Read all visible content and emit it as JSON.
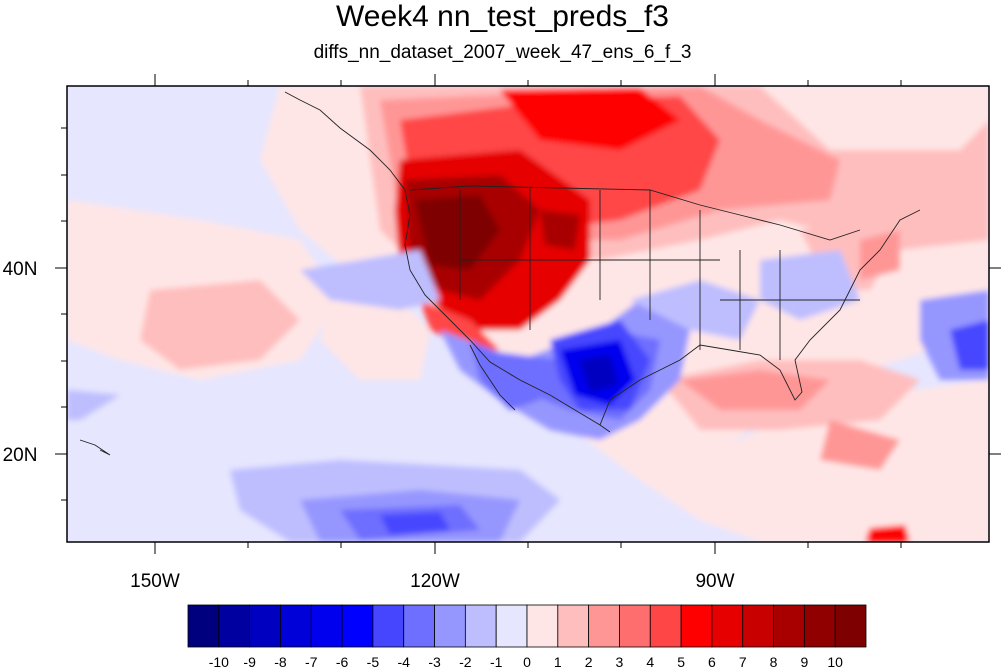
{
  "title": "Week4 nn_test_preds_f3",
  "subtitle": "diffs_nn_dataset_2007_week_47_ens_6_f_3",
  "map": {
    "lon_labels": [
      "150W",
      "120W",
      "90W"
    ],
    "lat_labels": [
      "40N",
      "20N"
    ]
  },
  "colorbar": {
    "labels": [
      "-10",
      "-9",
      "-8",
      "-7",
      "-6",
      "-5",
      "-4",
      "-3",
      "-2",
      "-1",
      "0",
      "1",
      "2",
      "3",
      "4",
      "5",
      "6",
      "7",
      "8",
      "9",
      "10"
    ],
    "colors": [
      "#00007f",
      "#0000a0",
      "#0000c0",
      "#0000d8",
      "#0000ee",
      "#0000ff",
      "#4646ff",
      "#6e6eff",
      "#9696ff",
      "#bebeff",
      "#e6e6ff",
      "#ffe6e6",
      "#ffbebe",
      "#ff9696",
      "#ff6e6e",
      "#ff4646",
      "#ff0000",
      "#e60000",
      "#c80000",
      "#a80000",
      "#900000",
      "#7f0000"
    ]
  }
}
